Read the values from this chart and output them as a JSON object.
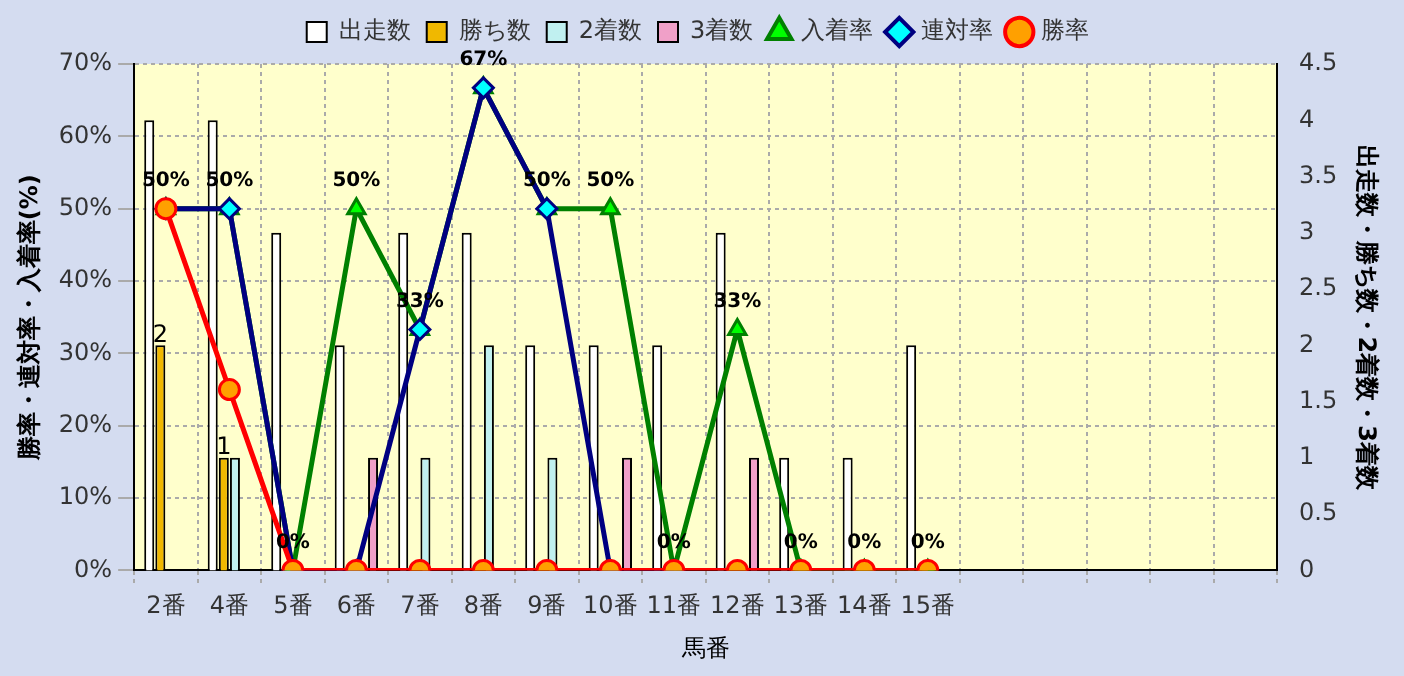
{
  "chart_data": {
    "type": "bar",
    "xlabel": "馬番",
    "ylabel": "勝率・連対率・入着率(%)",
    "y2label": "出走数・勝ち数・2着数・3着数",
    "categories": [
      "2番",
      "4番",
      "5番",
      "6番",
      "7番",
      "8番",
      "9番",
      "10番",
      "11番",
      "12番",
      "13番",
      "14番",
      "15番",
      null,
      null,
      null,
      null,
      null
    ],
    "series": [
      {
        "name": "勝率",
        "type": "line",
        "marker": "circle",
        "color": "#ff0000",
        "values": [
          50,
          25,
          0,
          0,
          0,
          0,
          0,
          0,
          0,
          0,
          0,
          0,
          0,
          null,
          null,
          null,
          null,
          null
        ]
      },
      {
        "name": "連対率",
        "type": "line",
        "marker": "diamond",
        "color": "#000080",
        "values": [
          50,
          50,
          0,
          0,
          33.3,
          66.7,
          50,
          0,
          0,
          null,
          null,
          null,
          null,
          null,
          null,
          null,
          null,
          null
        ]
      },
      {
        "name": "入着率",
        "type": "line",
        "marker": "triangle",
        "color": "#008000",
        "values": [
          50,
          50,
          0,
          50,
          33.3,
          66.7,
          50,
          50,
          0,
          33.3,
          0,
          0,
          0,
          null,
          null,
          null,
          null,
          null
        ],
        "value_labels": [
          "50%",
          "50%",
          "0%",
          "50%",
          "33%",
          "67%",
          "50%",
          "50%",
          "0%",
          "33%",
          "0%",
          "0%",
          "0%",
          null,
          null,
          null,
          null,
          null
        ]
      },
      {
        "name": "出走数",
        "axis": "y2",
        "color": "#ffffff",
        "values": [
          4,
          4,
          3,
          2,
          3,
          3,
          2,
          2,
          2,
          3,
          1,
          1,
          2,
          null,
          null,
          null,
          null,
          null
        ]
      },
      {
        "name": "勝ち数",
        "axis": "y2",
        "color": "#f0b800",
        "values": [
          2,
          1,
          0,
          0,
          0,
          0,
          0,
          0,
          0,
          0,
          0,
          0,
          0,
          null,
          null,
          null,
          null,
          null
        ],
        "value_labels": [
          "2",
          "1",
          null,
          null,
          null,
          null,
          null,
          null,
          null,
          null,
          null,
          null,
          null,
          null,
          null,
          null,
          null,
          null
        ]
      },
      {
        "name": "2着数",
        "axis": "y2",
        "color": "#c0f0f0",
        "values": [
          0,
          1,
          0,
          0,
          1,
          2,
          1,
          0,
          0,
          0,
          0,
          0,
          0,
          null,
          null,
          null,
          null,
          null
        ]
      },
      {
        "name": "3着数",
        "axis": "y2",
        "color": "#f0a0c8",
        "values": [
          0,
          0,
          0,
          1,
          0,
          0,
          0,
          1,
          0,
          1,
          0,
          0,
          0,
          null,
          null,
          null,
          null,
          null
        ]
      }
    ],
    "ylim": [
      0,
      70
    ],
    "yticks": [
      {
        "value": 0,
        "label": "0%"
      },
      {
        "value": 10,
        "label": "10%"
      },
      {
        "value": 20,
        "label": "20%"
      },
      {
        "value": 30,
        "label": "30%"
      },
      {
        "value": 40,
        "label": "40%"
      },
      {
        "value": 50,
        "label": "50%"
      },
      {
        "value": 60,
        "label": "60%"
      },
      {
        "value": 70,
        "label": "70%"
      }
    ],
    "y2lim": [
      0,
      4.5
    ],
    "y2ticks": [
      0,
      0.5,
      1,
      1.5,
      2,
      2.5,
      3,
      3.5,
      4,
      4.5
    ],
    "grid": true,
    "legend": "top",
    "line_style": "solid"
  }
}
